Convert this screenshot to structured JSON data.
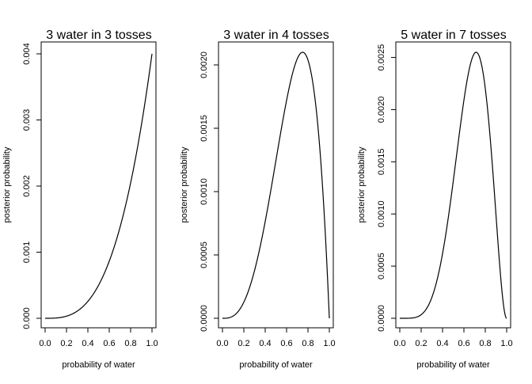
{
  "chart_data": [
    {
      "type": "line",
      "title": "3 water in 3 tosses",
      "xlabel": "probability of water",
      "ylabel": "posterior probability",
      "xlim": [
        0,
        1
      ],
      "ylim": [
        0,
        0.004
      ],
      "xticks": [
        0.0,
        0.2,
        0.4,
        0.6,
        0.8,
        1.0
      ],
      "xtick_labels": [
        "0.0",
        "0.2",
        "0.4",
        "0.6",
        "0.8",
        "1.0"
      ],
      "yticks": [
        0,
        0.001,
        0.002,
        0.003,
        0.004
      ],
      "ytick_labels": [
        "0.000",
        "0.001",
        "0.002",
        "0.003",
        "0.004"
      ],
      "grid": false,
      "series": [
        {
          "x": [
            0.0,
            0.1,
            0.2,
            0.3,
            0.4,
            0.5,
            0.6,
            0.7,
            0.8,
            0.9,
            1.0
          ],
          "y": [
            0.0,
            4e-06,
            3.2e-05,
            0.000108,
            0.000256,
            0.0005,
            0.000864,
            0.001372,
            0.002048,
            0.002916,
            0.004
          ]
        }
      ]
    },
    {
      "type": "line",
      "title": "3 water in 4 tosses",
      "xlabel": "probability of water",
      "ylabel": "posterior probability",
      "xlim": [
        0,
        1
      ],
      "ylim": [
        0,
        0.0021
      ],
      "xticks": [
        0.0,
        0.2,
        0.4,
        0.6,
        0.8,
        1.0
      ],
      "xtick_labels": [
        "0.0",
        "0.2",
        "0.4",
        "0.6",
        "0.8",
        "1.0"
      ],
      "yticks": [
        0,
        0.0005,
        0.001,
        0.0015,
        0.002
      ],
      "ytick_labels": [
        "0.0000",
        "0.0005",
        "0.0010",
        "0.0015",
        "0.0020"
      ],
      "grid": false,
      "series": [
        {
          "x": [
            0.0,
            0.1,
            0.2,
            0.3,
            0.4,
            0.5,
            0.6,
            0.7,
            0.75,
            0.8,
            0.9,
            1.0
          ],
          "y": [
            0.0,
            1.42e-05,
            0.0001013,
            0.0003023,
            0.0006082,
            0.000988,
            0.0013677,
            0.0018204,
            0.0021,
            0.0020482,
            0.001459,
            0.0
          ]
        }
      ]
    },
    {
      "type": "line",
      "title": "5 water in 7 tosses",
      "xlabel": "probability of water",
      "ylabel": "posterior probability",
      "xlim": [
        0,
        1
      ],
      "ylim": [
        0,
        0.00255
      ],
      "xticks": [
        0.0,
        0.2,
        0.4,
        0.6,
        0.8,
        1.0
      ],
      "xtick_labels": [
        "0.0",
        "0.2",
        "0.4",
        "0.6",
        "0.8",
        "1.0"
      ],
      "yticks": [
        0,
        0.0005,
        0.001,
        0.0015,
        0.002,
        0.0025
      ],
      "ytick_labels": [
        "0.0000",
        "0.0005",
        "0.0010",
        "0.0015",
        "0.0020",
        "0.0025"
      ],
      "grid": false,
      "series": [
        {
          "x": [
            0.0,
            0.1,
            0.2,
            0.3,
            0.4,
            0.5,
            0.6,
            0.7,
            0.714,
            0.8,
            0.9,
            1.0
          ],
          "y": [
            0.0,
            3e-07,
            1.95e-05,
            0.000148,
            0.000578,
            0.0012,
            0.00221,
            0.00254,
            0.00255,
            0.00213,
            0.000807,
            0.0
          ]
        }
      ]
    }
  ]
}
